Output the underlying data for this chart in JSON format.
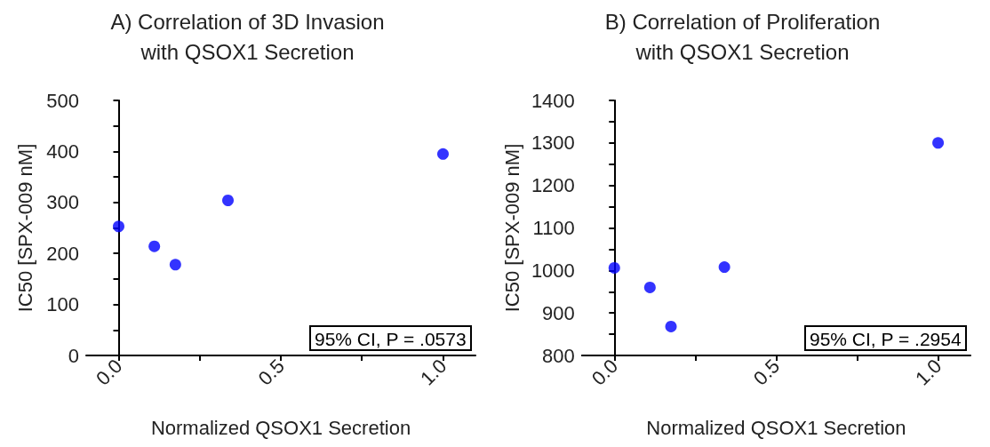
{
  "chart_data": [
    {
      "type": "scatter",
      "title": "A) Correlation of 3D Invasion\nwith QSOX1 Secretion",
      "xlabel": "Normalized QSOX1 Secretion",
      "ylabel": "IC50 [SPX-009 nM]",
      "x": [
        0.0,
        0.11,
        0.175,
        0.337,
        1.0
      ],
      "series": [
        {
          "color": "#0000ff",
          "values": [
            253,
            214,
            178,
            304,
            395
          ]
        }
      ],
      "xlim": [
        -0.1,
        1.1
      ],
      "xticks": [
        {
          "value": 0.0,
          "label": "0.0"
        },
        {
          "value": 0.25,
          "label": null
        },
        {
          "value": 0.5,
          "label": "0.5"
        },
        {
          "value": 0.75,
          "label": null
        },
        {
          "value": 1.0,
          "label": "1.0"
        }
      ],
      "ylim": [
        0,
        500
      ],
      "yticks": [
        0,
        {
          "value": 50,
          "label": null
        },
        100,
        {
          "value": 150,
          "label": null
        },
        200,
        {
          "value": 250,
          "label": null
        },
        300,
        {
          "value": 350,
          "label": null
        },
        400,
        {
          "value": 450,
          "label": null
        },
        500
      ],
      "annotations": [
        "95% CI, P = .0573"
      ],
      "marker": "circle",
      "grid": false
    },
    {
      "type": "scatter",
      "title": "B) Correlation of Proliferation\nwith QSOX1 Secretion",
      "xlabel": "Normalized QSOX1 Secretion",
      "ylabel": "IC50 [SPX-009 nM]",
      "x": [
        0.0,
        0.11,
        0.175,
        0.34,
        1.0
      ],
      "series": [
        {
          "color": "#0000ff",
          "values": [
            1006,
            960,
            868,
            1008,
            1300
          ]
        }
      ],
      "xlim": [
        -0.1,
        1.1
      ],
      "xticks": [
        {
          "value": 0.0,
          "label": "0.0"
        },
        {
          "value": 0.25,
          "label": null
        },
        {
          "value": 0.5,
          "label": "0.5"
        },
        {
          "value": 0.75,
          "label": null
        },
        {
          "value": 1.0,
          "label": "1.0"
        }
      ],
      "ylim": [
        800,
        1400
      ],
      "yticks": [
        800,
        {
          "value": 850,
          "label": null
        },
        900,
        {
          "value": 950,
          "label": null
        },
        1000,
        {
          "value": 1050,
          "label": null
        },
        1100,
        {
          "value": 1150,
          "label": null
        },
        1200,
        {
          "value": 1250,
          "label": null
        },
        1300,
        {
          "value": 1350,
          "label": null
        },
        1400
      ],
      "annotations": [
        "95% CI, P = .2954"
      ],
      "marker": "circle",
      "grid": false
    }
  ]
}
